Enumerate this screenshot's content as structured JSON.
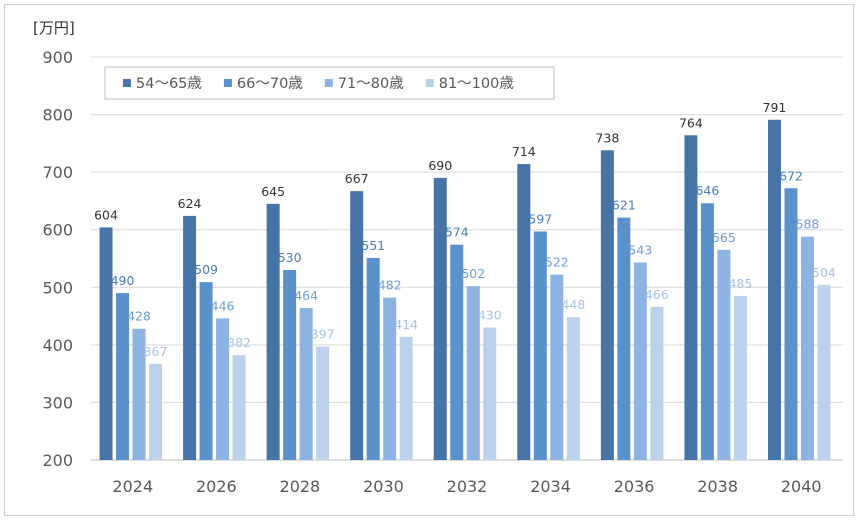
{
  "chart_data": {
    "type": "bar",
    "y_unit": "[万円]",
    "ylim": [
      200,
      900
    ],
    "yticks": [
      200,
      300,
      400,
      500,
      600,
      700,
      800,
      900
    ],
    "grid": true,
    "legend_position": "top-left",
    "categories": [
      "2024",
      "2026",
      "2028",
      "2030",
      "2032",
      "2034",
      "2036",
      "2038",
      "2040"
    ],
    "series": [
      {
        "name": "54〜65歳",
        "color": "#4674a6",
        "label_color": "#333333",
        "values": [
          604,
          624,
          645,
          667,
          690,
          714,
          738,
          764,
          791
        ]
      },
      {
        "name": "66〜70歳",
        "color": "#5b91cb",
        "label_color": "#4a7cb8",
        "values": [
          490,
          509,
          530,
          551,
          574,
          597,
          621,
          646,
          672
        ]
      },
      {
        "name": "71〜80歳",
        "color": "#8db3e2",
        "label_color": "#6d9fd5",
        "values": [
          428,
          446,
          464,
          482,
          502,
          522,
          543,
          565,
          588
        ]
      },
      {
        "name": "81〜100歳",
        "color": "#bcd2ec",
        "label_color": "#a9c4e6",
        "values": [
          367,
          382,
          397,
          414,
          430,
          448,
          466,
          485,
          504
        ]
      }
    ]
  }
}
